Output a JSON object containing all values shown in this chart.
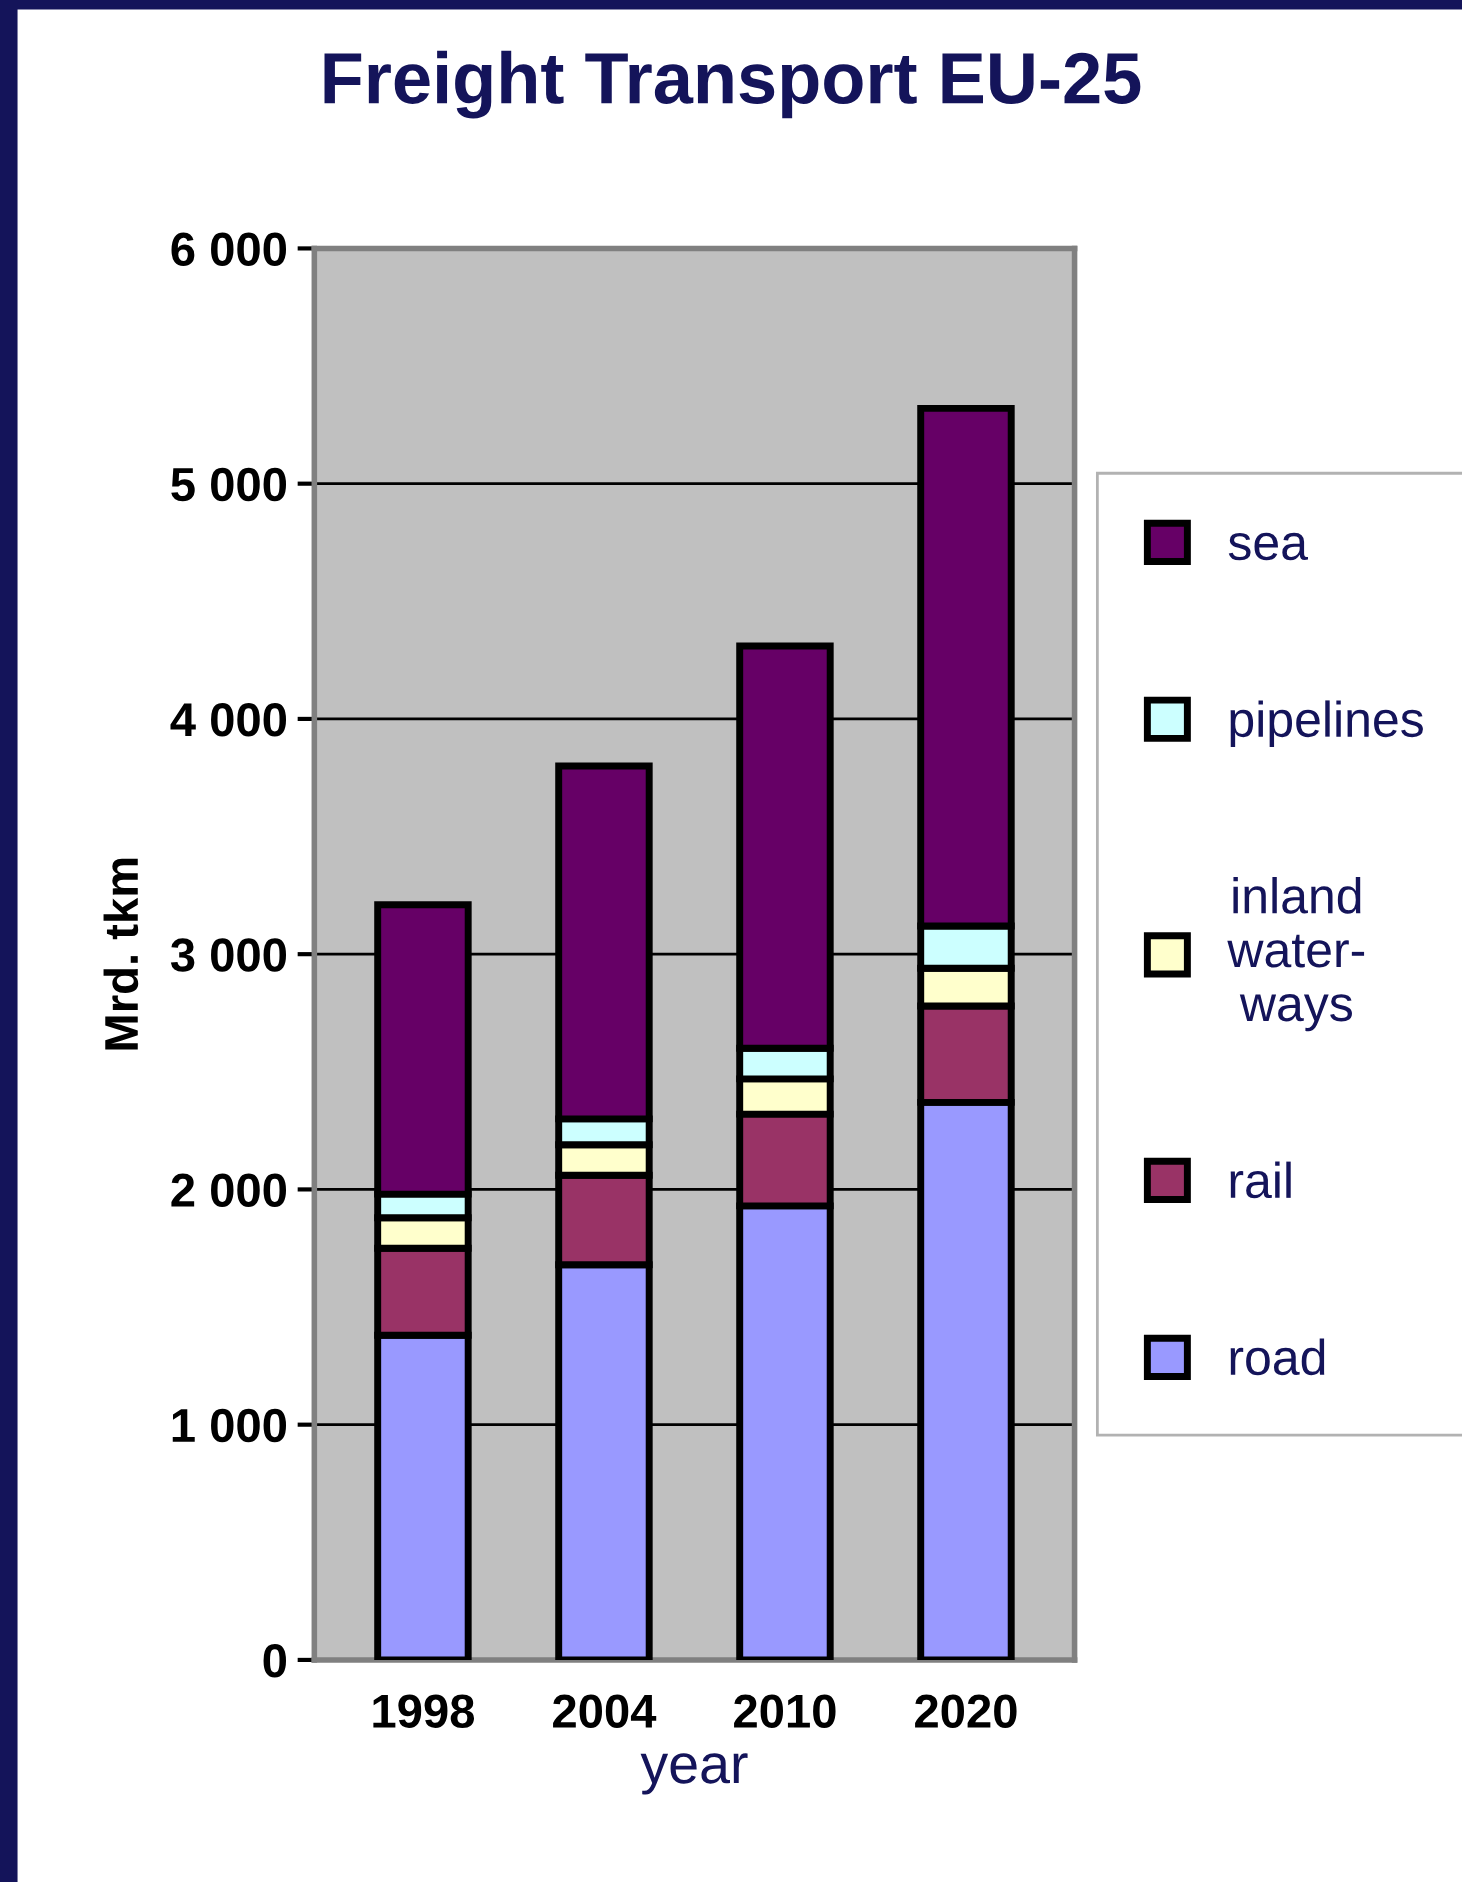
{
  "chart_data": {
    "type": "bar",
    "title": "Freight Transport EU-25",
    "xlabel": "year",
    "ylabel": "Mrd. tkm",
    "categories": [
      "1998",
      "2004",
      "2010",
      "2020"
    ],
    "stacked": true,
    "series": [
      {
        "name": "road",
        "color": "#9999ff",
        "values": [
          1380,
          1680,
          1930,
          2370
        ]
      },
      {
        "name": "rail",
        "color": "#993366",
        "values": [
          370,
          380,
          390,
          410
        ]
      },
      {
        "name": "inland\nwater-\nways",
        "color": "#ffffcc",
        "values": [
          130,
          130,
          150,
          160
        ]
      },
      {
        "name": "pipelines",
        "color": "#ccffff",
        "values": [
          100,
          110,
          130,
          180
        ]
      },
      {
        "name": "sea",
        "color": "#660066",
        "values": [
          1230,
          1500,
          1710,
          2200
        ]
      }
    ],
    "ylim": [
      0,
      6000
    ],
    "yticks": [
      0,
      {
        "value": 1000,
        "label": "1 000"
      },
      {
        "value": 2000,
        "label": "2 000"
      },
      {
        "value": 3000,
        "label": "3 000"
      },
      {
        "value": 4000,
        "label": "4 000"
      },
      {
        "value": 5000,
        "label": "5 000"
      },
      {
        "value": 6000,
        "label": "6 000"
      }
    ],
    "grid": "y",
    "legend": "right"
  }
}
